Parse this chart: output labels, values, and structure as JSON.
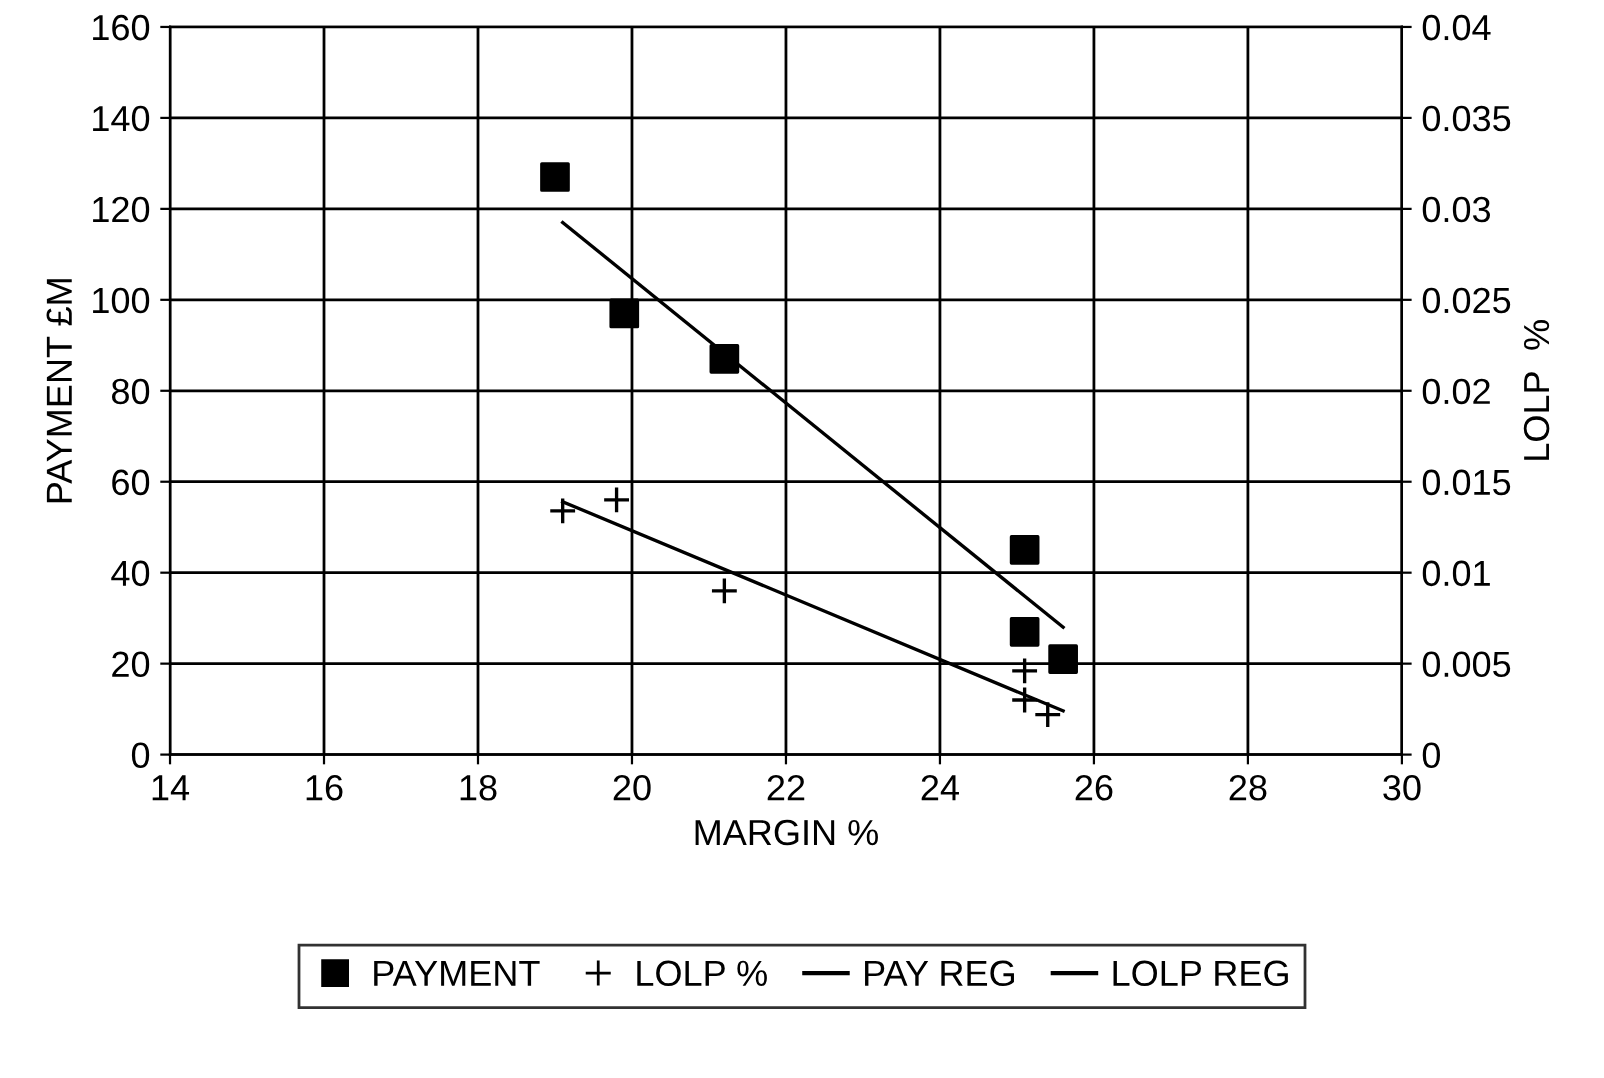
{
  "chart_data": {
    "type": "scatter",
    "xlabel": "MARGIN %",
    "ylabel": "PAYMENT £M",
    "y2label": "LOLP  %",
    "xlim": [
      14,
      30
    ],
    "xticks": [
      14,
      16,
      18,
      20,
      22,
      24,
      26,
      28,
      30
    ],
    "ylim": [
      0,
      160
    ],
    "yticks": [
      0,
      20,
      40,
      60,
      80,
      100,
      120,
      140,
      160
    ],
    "y2lim": [
      0,
      0.04
    ],
    "y2ticks": [
      0,
      0.005,
      0.01,
      0.015,
      0.02,
      0.025,
      0.03,
      0.035,
      0.04
    ],
    "grid": true,
    "legend": "bottom",
    "series": [
      {
        "name": "PAYMENT",
        "marker": "square",
        "color": "#000000",
        "x": [
          19.0,
          19.9,
          21.2,
          25.1,
          25.1,
          25.6
        ],
        "values": [
          127,
          97,
          87,
          45,
          27,
          21
        ]
      },
      {
        "name": "LOLP %",
        "marker": "cross",
        "color": "#000000",
        "axis": "y2",
        "x": [
          19.1,
          19.8,
          21.2,
          25.1,
          25.1,
          25.4
        ],
        "values": [
          0.0134,
          0.014,
          0.009,
          0.0046,
          0.003,
          0.0022
        ]
      },
      {
        "name": "PAY REG",
        "type": "line",
        "color": "#000000",
        "x": [
          19.1,
          25.6
        ],
        "values": [
          117,
          28
        ]
      },
      {
        "name": "LOLP REG",
        "type": "line",
        "color": "#000000",
        "axis": "y2",
        "x": [
          19.1,
          25.6
        ],
        "values": [
          0.0139,
          0.0024
        ]
      }
    ]
  }
}
